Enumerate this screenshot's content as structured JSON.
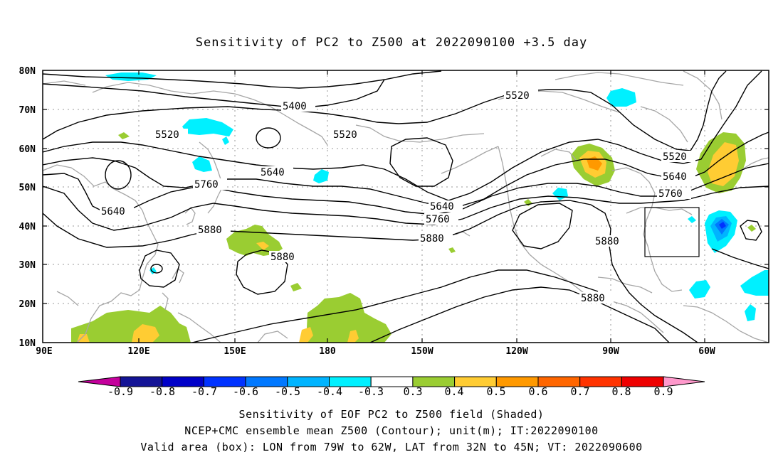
{
  "title": "Sensitivity of PC2 to Z500 at 2022090100 +3.5 day",
  "lat_labels": [
    "80N",
    "70N",
    "60N",
    "50N",
    "40N",
    "30N",
    "20N",
    "10N"
  ],
  "lon_labels": [
    "90E",
    "120E",
    "150E",
    "180",
    "150W",
    "120W",
    "90W",
    "60W"
  ],
  "contour_labels": [
    "5400",
    "5520",
    "5520",
    "5520",
    "5520",
    "5640",
    "5640",
    "5640",
    "5640",
    "5760",
    "5760",
    "5760",
    "5880",
    "5880",
    "5880",
    "5880",
    "5880"
  ],
  "colorbar": {
    "labels": [
      "-0.9",
      "-0.8",
      "-0.7",
      "-0.6",
      "-0.5",
      "-0.4",
      "-0.3",
      "0.3",
      "0.4",
      "0.5",
      "0.6",
      "0.7",
      "0.8",
      "0.9"
    ],
    "colors": [
      "#c4009c",
      "#141496",
      "#0000c8",
      "#0032ff",
      "#0078ff",
      "#00b4ff",
      "#00f0ff",
      "#ffffff",
      "#9acd32",
      "#ffcc33",
      "#ff9900",
      "#ff6600",
      "#ff3300",
      "#ee0000",
      "#ff99cc"
    ]
  },
  "caption": {
    "line1": "Sensitivity of EOF PC2 to Z500 field (Shaded)",
    "line2": "NCEP+CMC ensemble mean Z500 (Contour); unit(m); IT:2022090100",
    "line3": "Valid area (box): LON from 79W to 62W, LAT from 32N to 45N; VT: 2022090600"
  }
}
